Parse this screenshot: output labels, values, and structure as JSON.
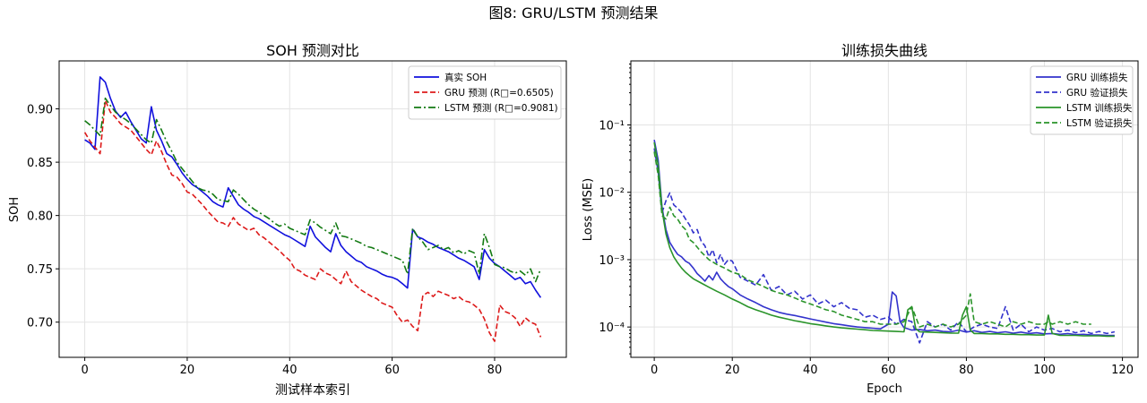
{
  "suptitle": "图8: GRU/LSTM 预测结果",
  "chart_data": [
    {
      "type": "line",
      "title": "SOH 预测对比",
      "xlabel": "测试样本索引",
      "ylabel": "SOH",
      "xlim": [
        -5,
        94
      ],
      "ylim": [
        0.667,
        0.945
      ],
      "xticks": [
        0,
        20,
        40,
        60,
        80
      ],
      "xtick_labels": [
        "0",
        "20",
        "40",
        "60",
        "80"
      ],
      "yticks": [
        0.7,
        0.75,
        0.8,
        0.85,
        0.9
      ],
      "ytick_labels": [
        "0.70",
        "0.75",
        "0.80",
        "0.85",
        "0.90"
      ],
      "grid": true,
      "legend": "top-right",
      "x": [
        0,
        1,
        2,
        3,
        4,
        5,
        6,
        7,
        8,
        9,
        10,
        11,
        12,
        13,
        14,
        15,
        16,
        17,
        18,
        19,
        20,
        21,
        22,
        23,
        24,
        25,
        26,
        27,
        28,
        29,
        30,
        31,
        32,
        33,
        34,
        35,
        36,
        37,
        38,
        39,
        40,
        41,
        42,
        43,
        44,
        45,
        46,
        47,
        48,
        49,
        50,
        51,
        52,
        53,
        54,
        55,
        56,
        57,
        58,
        59,
        60,
        61,
        62,
        63,
        64,
        65,
        66,
        67,
        68,
        69,
        70,
        71,
        72,
        73,
        74,
        75,
        76,
        77,
        78,
        79,
        80,
        81,
        82,
        83,
        84,
        85,
        86,
        87,
        88,
        89
      ],
      "series": [
        {
          "name": "真实 SOH",
          "color": "#1010dd",
          "dash": "solid",
          "values": [
            0.871,
            0.868,
            0.862,
            0.93,
            0.925,
            0.91,
            0.898,
            0.892,
            0.897,
            0.888,
            0.88,
            0.872,
            0.868,
            0.902,
            0.88,
            0.87,
            0.858,
            0.855,
            0.848,
            0.84,
            0.834,
            0.829,
            0.826,
            0.822,
            0.818,
            0.813,
            0.81,
            0.808,
            0.826,
            0.818,
            0.81,
            0.806,
            0.803,
            0.799,
            0.797,
            0.794,
            0.791,
            0.788,
            0.785,
            0.782,
            0.78,
            0.777,
            0.774,
            0.771,
            0.79,
            0.78,
            0.775,
            0.77,
            0.766,
            0.783,
            0.772,
            0.766,
            0.762,
            0.758,
            0.756,
            0.752,
            0.75,
            0.748,
            0.745,
            0.743,
            0.742,
            0.74,
            0.736,
            0.732,
            0.787,
            0.78,
            0.778,
            0.775,
            0.773,
            0.77,
            0.768,
            0.766,
            0.763,
            0.76,
            0.758,
            0.755,
            0.752,
            0.74,
            0.768,
            0.76,
            0.755,
            0.752,
            0.748,
            0.744,
            0.74,
            0.742,
            0.736,
            0.738,
            0.73,
            0.723
          ]
        },
        {
          "name": "GRU 预测 (R□=0.6505)",
          "color": "#dd1a1a",
          "dash": "dashed",
          "values": [
            0.878,
            0.87,
            0.864,
            0.858,
            0.908,
            0.897,
            0.892,
            0.886,
            0.883,
            0.88,
            0.874,
            0.868,
            0.862,
            0.857,
            0.87,
            0.86,
            0.848,
            0.838,
            0.836,
            0.83,
            0.822,
            0.82,
            0.815,
            0.81,
            0.804,
            0.799,
            0.794,
            0.793,
            0.79,
            0.798,
            0.792,
            0.789,
            0.786,
            0.788,
            0.782,
            0.779,
            0.775,
            0.771,
            0.767,
            0.762,
            0.758,
            0.75,
            0.748,
            0.744,
            0.742,
            0.74,
            0.75,
            0.746,
            0.744,
            0.74,
            0.736,
            0.748,
            0.738,
            0.734,
            0.73,
            0.727,
            0.724,
            0.722,
            0.718,
            0.716,
            0.714,
            0.706,
            0.7,
            0.702,
            0.696,
            0.692,
            0.725,
            0.728,
            0.724,
            0.729,
            0.727,
            0.725,
            0.722,
            0.724,
            0.72,
            0.719,
            0.716,
            0.712,
            0.703,
            0.69,
            0.682,
            0.716,
            0.71,
            0.708,
            0.704,
            0.696,
            0.704,
            0.7,
            0.698,
            0.686
          ]
        },
        {
          "name": "LSTM 预测 (R□=0.9081)",
          "color": "#137a13",
          "dash": "dashdot",
          "values": [
            0.889,
            0.885,
            0.88,
            0.875,
            0.91,
            0.903,
            0.897,
            0.893,
            0.89,
            0.886,
            0.881,
            0.876,
            0.871,
            0.868,
            0.89,
            0.88,
            0.869,
            0.86,
            0.85,
            0.844,
            0.838,
            0.832,
            0.826,
            0.824,
            0.823,
            0.82,
            0.815,
            0.814,
            0.813,
            0.824,
            0.82,
            0.815,
            0.81,
            0.806,
            0.803,
            0.8,
            0.797,
            0.793,
            0.79,
            0.792,
            0.788,
            0.786,
            0.784,
            0.782,
            0.796,
            0.793,
            0.789,
            0.786,
            0.783,
            0.793,
            0.781,
            0.78,
            0.778,
            0.776,
            0.774,
            0.771,
            0.77,
            0.768,
            0.766,
            0.764,
            0.762,
            0.76,
            0.758,
            0.745,
            0.788,
            0.78,
            0.775,
            0.768,
            0.77,
            0.772,
            0.768,
            0.77,
            0.765,
            0.767,
            0.764,
            0.767,
            0.765,
            0.745,
            0.783,
            0.77,
            0.754,
            0.752,
            0.751,
            0.748,
            0.746,
            0.748,
            0.744,
            0.75,
            0.738,
            0.75
          ]
        }
      ]
    },
    {
      "type": "line",
      "title": "训练损失曲线",
      "xlabel": "Epoch",
      "ylabel": "Loss (MSE)",
      "yscale": "log",
      "xlim": [
        -6,
        124
      ],
      "ylim_log10": [
        -4.45,
        -0.05
      ],
      "xticks": [
        0,
        20,
        40,
        60,
        80,
        100,
        120
      ],
      "xtick_labels": [
        "0",
        "20",
        "40",
        "60",
        "80",
        "100",
        "120"
      ],
      "yticks_log10": [
        -4,
        -3,
        -2,
        -1
      ],
      "ytick_labels": [
        "10⁻⁴",
        "10⁻³",
        "10⁻²",
        "10⁻¹"
      ],
      "grid": true,
      "legend": "top-right",
      "series": [
        {
          "name": "GRU 训练损失",
          "color": "#3333cc",
          "dash": "solid",
          "x": [
            0,
            1,
            2,
            3,
            4,
            5,
            6,
            7,
            8,
            9,
            10,
            11,
            12,
            13,
            14,
            15,
            16,
            17,
            18,
            19,
            20,
            22,
            24,
            26,
            28,
            30,
            32,
            34,
            36,
            38,
            40,
            42,
            44,
            46,
            48,
            50,
            52,
            54,
            56,
            58,
            60,
            61,
            62,
            63,
            64,
            66,
            68,
            70,
            72,
            74,
            76,
            78,
            80,
            82,
            84,
            86,
            88,
            90,
            92,
            94,
            96,
            98,
            100,
            102,
            104,
            106,
            108,
            110,
            112,
            114,
            116,
            118
          ],
          "values": [
            0.06,
            0.03,
            0.006,
            0.0028,
            0.0018,
            0.00145,
            0.0012,
            0.0011,
            0.00095,
            0.00088,
            0.00075,
            0.00062,
            0.00055,
            0.00048,
            0.00058,
            0.0005,
            0.00065,
            0.00052,
            0.00045,
            0.0004,
            0.00037,
            0.0003,
            0.00026,
            0.00023,
            0.0002,
            0.00018,
            0.000165,
            0.000155,
            0.000148,
            0.00014,
            0.000132,
            0.000125,
            0.000118,
            0.000112,
            0.000108,
            0.000104,
            0.0001,
            9.8e-05,
            9.6e-05,
            9.4e-05,
            0.00011,
            0.00033,
            0.00029,
            0.00012,
            9.8e-05,
            9e-05,
            9.2e-05,
            8.8e-05,
            9e-05,
            8.6e-05,
            8.5e-05,
            9e-05,
            8.4e-05,
            8.8e-05,
            8.3e-05,
            8.6e-05,
            8.2e-05,
            8.5e-05,
            8.1e-05,
            8.4e-05,
            8e-05,
            8.2e-05,
            7.9e-05,
            8e-05,
            7.8e-05,
            8e-05,
            7.7e-05,
            7.8e-05,
            7.6e-05,
            7.6e-05,
            7.5e-05,
            7.5e-05
          ]
        },
        {
          "name": "GRU 验证损失",
          "color": "#3333cc",
          "dash": "dashed",
          "x": [
            0,
            1,
            2,
            3,
            4,
            5,
            6,
            7,
            8,
            9,
            10,
            11,
            12,
            13,
            14,
            15,
            16,
            17,
            18,
            19,
            20,
            22,
            24,
            26,
            28,
            30,
            32,
            34,
            36,
            38,
            40,
            42,
            44,
            46,
            48,
            50,
            52,
            54,
            56,
            58,
            60,
            62,
            64,
            66,
            68,
            70,
            72,
            74,
            76,
            78,
            80,
            82,
            84,
            86,
            88,
            90,
            92,
            94,
            96,
            98,
            100,
            102,
            104,
            106,
            108,
            110,
            112,
            114,
            116,
            118
          ],
          "values": [
            0.045,
            0.02,
            0.005,
            0.0075,
            0.0098,
            0.0065,
            0.0058,
            0.005,
            0.004,
            0.0033,
            0.0025,
            0.0028,
            0.0019,
            0.0016,
            0.0011,
            0.0014,
            0.0009,
            0.0012,
            0.00085,
            0.001,
            0.00095,
            0.00055,
            0.00048,
            0.00042,
            0.0006,
            0.00035,
            0.0004,
            0.0003,
            0.00034,
            0.00026,
            0.0003,
            0.00022,
            0.00025,
            0.0002,
            0.00023,
            0.00019,
            0.00018,
            0.00014,
            0.00015,
            0.00013,
            0.00014,
            0.00011,
            0.00013,
            0.00012,
            5.8e-05,
            0.00012,
            0.0001,
            0.00011,
            9e-05,
            0.00012,
            8.5e-05,
            0.0001,
            0.00011,
            0.0001,
            9.5e-05,
            0.0002,
            9e-05,
            0.00011,
            8.5e-05,
            0.0001,
            9e-05,
            9.5e-05,
            8.5e-05,
            9e-05,
            8.2e-05,
            8.8e-05,
            8e-05,
            8.6e-05,
            8e-05,
            8.5e-05
          ]
        },
        {
          "name": "LSTM 训练损失",
          "color": "#2a942a",
          "dash": "solid",
          "x": [
            0,
            1,
            2,
            3,
            4,
            5,
            6,
            7,
            8,
            9,
            10,
            12,
            14,
            16,
            18,
            20,
            22,
            24,
            26,
            28,
            30,
            32,
            34,
            36,
            38,
            40,
            42,
            44,
            46,
            48,
            50,
            52,
            54,
            56,
            58,
            60,
            62,
            64,
            65,
            66,
            67,
            68,
            70,
            72,
            74,
            76,
            78,
            79,
            80,
            81,
            82,
            84,
            86,
            88,
            90,
            92,
            94,
            96,
            98,
            100,
            101,
            102,
            104,
            106,
            108,
            110,
            112,
            114,
            116,
            118
          ],
          "values": [
            0.055,
            0.025,
            0.0055,
            0.0024,
            0.0015,
            0.0011,
            0.0009,
            0.00075,
            0.00065,
            0.00058,
            0.00052,
            0.00045,
            0.00039,
            0.00034,
            0.0003,
            0.00026,
            0.00023,
            0.0002,
            0.00018,
            0.000165,
            0.00015,
            0.00014,
            0.000132,
            0.000124,
            0.000118,
            0.000112,
            0.000108,
            0.000104,
            0.0001,
            9.7e-05,
            9.5e-05,
            9.3e-05,
            9.1e-05,
            8.9e-05,
            8.8e-05,
            8.7e-05,
            8.6e-05,
            8.5e-05,
            0.00018,
            0.0002,
            9.5e-05,
            8.5e-05,
            8.4e-05,
            8.3e-05,
            8.2e-05,
            8.1e-05,
            8.1e-05,
            0.00015,
            0.0002,
            9e-05,
            8e-05,
            8e-05,
            7.9e-05,
            7.9e-05,
            7.8e-05,
            7.8e-05,
            7.7e-05,
            7.7e-05,
            7.6e-05,
            7.6e-05,
            0.00015,
            8e-05,
            7.5e-05,
            7.5e-05,
            7.5e-05,
            7.4e-05,
            7.4e-05,
            7.4e-05,
            7.3e-05,
            7.3e-05
          ]
        },
        {
          "name": "LSTM 验证损失",
          "color": "#2a942a",
          "dash": "dashed",
          "x": [
            0,
            1,
            2,
            3,
            4,
            5,
            6,
            7,
            8,
            9,
            10,
            12,
            14,
            16,
            18,
            20,
            22,
            24,
            26,
            28,
            30,
            32,
            34,
            36,
            38,
            40,
            42,
            44,
            46,
            48,
            50,
            52,
            54,
            56,
            58,
            60,
            62,
            64,
            66,
            68,
            70,
            72,
            74,
            76,
            78,
            80,
            81,
            82,
            84,
            86,
            88,
            90,
            92,
            94,
            96,
            98,
            100,
            101,
            102,
            104,
            106,
            108,
            110,
            112
          ],
          "values": [
            0.04,
            0.018,
            0.0045,
            0.004,
            0.006,
            0.0045,
            0.004,
            0.0032,
            0.0028,
            0.002,
            0.0018,
            0.0013,
            0.001,
            0.00085,
            0.00075,
            0.00065,
            0.0006,
            0.0005,
            0.00045,
            0.0004,
            0.00035,
            0.00032,
            0.0003,
            0.00027,
            0.00024,
            0.00022,
            0.0002,
            0.00018,
            0.00017,
            0.00015,
            0.00014,
            0.00013,
            0.00012,
            0.00012,
            0.00011,
            0.00011,
            0.00011,
            0.00012,
            0.0002,
            0.0001,
            0.00011,
            0.0001,
            0.00011,
            0.0001,
            0.00011,
            0.00015,
            0.00031,
            0.00012,
            0.00011,
            0.00012,
            0.00011,
            0.0001,
            0.00012,
            0.00011,
            0.00012,
            0.00011,
            0.00011,
            0.00012,
            0.00011,
            0.00012,
            0.00011,
            0.00012,
            0.00011,
            0.00011
          ]
        }
      ]
    }
  ]
}
